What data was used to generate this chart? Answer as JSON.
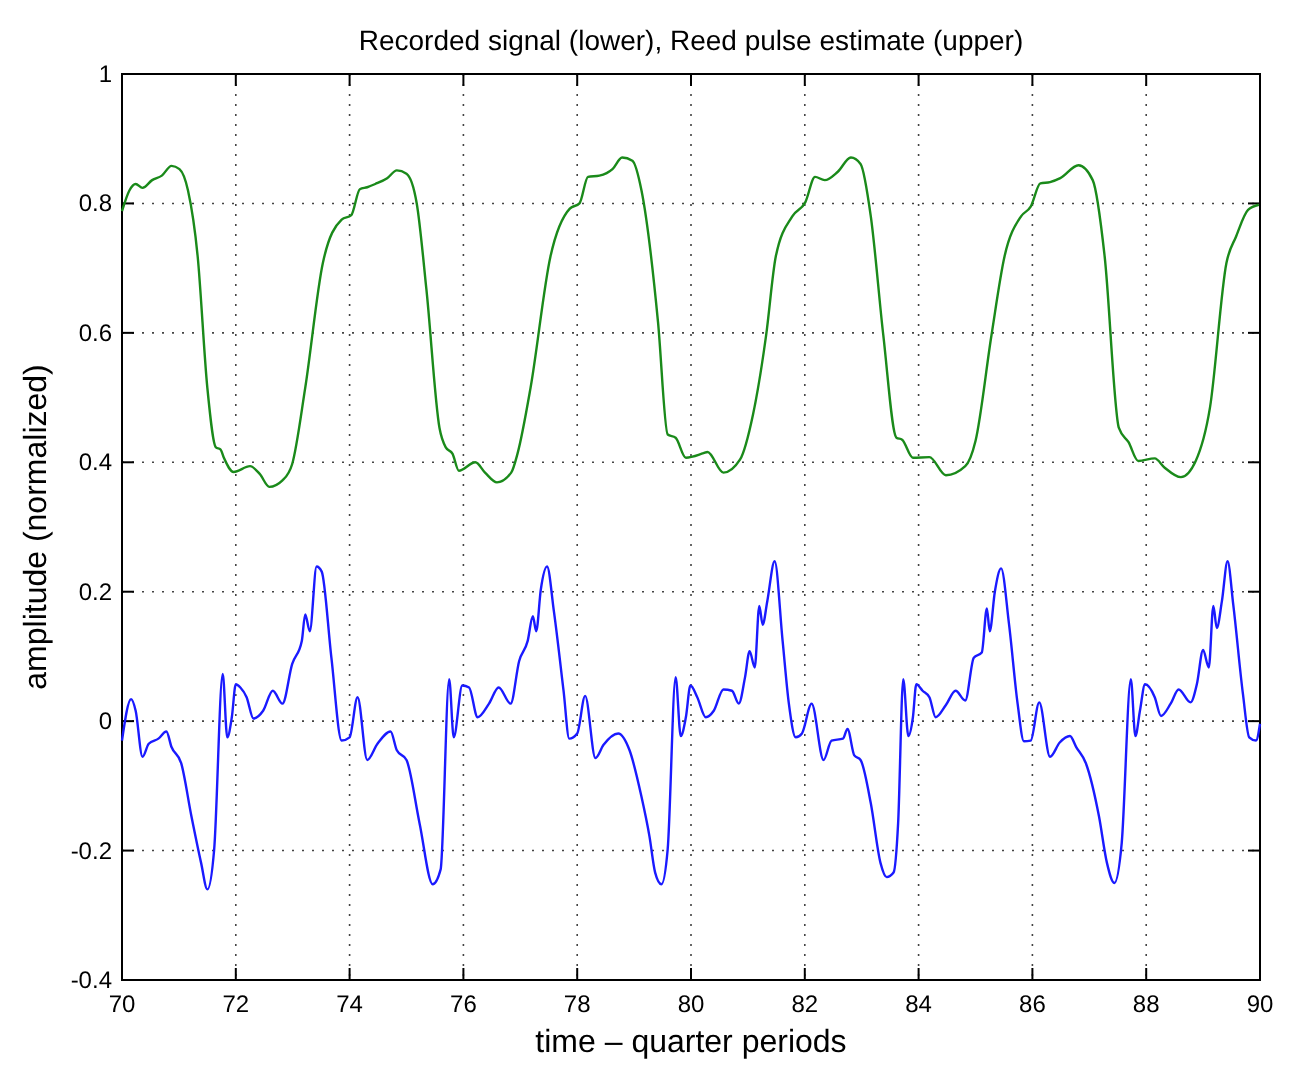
{
  "chart_data": {
    "type": "line",
    "title": "Recorded signal (lower), Reed pulse estimate (upper)",
    "xlabel": "time – quarter periods",
    "ylabel": "amplitude (normalized)",
    "xlim": [
      70,
      90
    ],
    "ylim": [
      -0.4,
      1
    ],
    "xticks": [
      70,
      72,
      74,
      76,
      78,
      80,
      82,
      84,
      86,
      88,
      90
    ],
    "yticks": [
      -0.4,
      -0.2,
      0,
      0.2,
      0.4,
      0.6,
      0.8,
      1
    ],
    "grid": true,
    "marker": "none",
    "line_style": "solid",
    "series": [
      {
        "color": "#1a8a1a",
        "x": [
          70,
          70.13,
          70.24,
          70.36,
          70.53,
          70.7,
          70.87,
          71.01,
          71.16,
          71.33,
          71.5,
          71.65,
          71.73,
          71.79,
          71.96,
          72.25,
          72.42,
          72.59,
          72.82,
          72.99,
          73.22,
          73.53,
          73.86,
          74.03,
          74.18,
          74.31,
          74.45,
          74.66,
          74.83,
          75.0,
          75.18,
          75.35,
          75.58,
          75.69,
          75.81,
          75.92,
          76.21,
          76.38,
          76.59,
          76.84,
          76.95,
          77.18,
          77.53,
          77.87,
          78.04,
          78.19,
          78.39,
          78.62,
          78.79,
          78.97,
          79.13,
          79.42,
          79.59,
          79.73,
          79.91,
          80.22,
          80.29,
          80.57,
          80.86,
          81.09,
          81.32,
          81.49,
          81.78,
          82.01,
          82.18,
          82.35,
          82.58,
          82.81,
          82.98,
          83.16,
          83.38,
          83.61,
          83.71,
          83.9,
          84.19,
          84.48,
          84.82,
          85.0,
          85.28,
          85.51,
          85.8,
          85.97,
          86.14,
          86.31,
          86.49,
          86.81,
          87.06,
          87.27,
          87.52,
          87.69,
          87.86,
          88.15,
          88.32,
          88.61,
          88.87,
          89.12,
          89.41,
          89.58,
          89.79,
          89.98
        ],
        "values": [
          0.788,
          0.82,
          0.83,
          0.824,
          0.836,
          0.843,
          0.858,
          0.853,
          0.82,
          0.718,
          0.515,
          0.423,
          0.42,
          0.407,
          0.385,
          0.394,
          0.382,
          0.362,
          0.372,
          0.397,
          0.515,
          0.708,
          0.775,
          0.782,
          0.822,
          0.825,
          0.83,
          0.839,
          0.851,
          0.846,
          0.8,
          0.667,
          0.453,
          0.423,
          0.413,
          0.387,
          0.4,
          0.384,
          0.369,
          0.384,
          0.413,
          0.515,
          0.718,
          0.792,
          0.8,
          0.841,
          0.843,
          0.853,
          0.871,
          0.866,
          0.82,
          0.617,
          0.443,
          0.438,
          0.407,
          0.414,
          0.416,
          0.384,
          0.404,
          0.474,
          0.596,
          0.718,
          0.78,
          0.802,
          0.841,
          0.836,
          0.849,
          0.871,
          0.861,
          0.78,
          0.596,
          0.438,
          0.435,
          0.407,
          0.408,
          0.38,
          0.394,
          0.433,
          0.596,
          0.718,
          0.78,
          0.795,
          0.831,
          0.833,
          0.839,
          0.859,
          0.836,
          0.718,
          0.453,
          0.431,
          0.402,
          0.406,
          0.392,
          0.377,
          0.402,
          0.484,
          0.708,
          0.749,
          0.79,
          0.798
        ]
      },
      {
        "color": "#1a1aff",
        "x": [
          70,
          70.16,
          70.24,
          70.36,
          70.47,
          70.64,
          70.78,
          70.87,
          71.04,
          71.22,
          71.39,
          71.5,
          71.62,
          71.77,
          71.85,
          71.93,
          72,
          72.08,
          72.19,
          72.31,
          72.48,
          72.65,
          72.82,
          72.99,
          73.16,
          73.22,
          73.3,
          73.42,
          73.51,
          73.68,
          73.86,
          74,
          74.14,
          74.31,
          74.49,
          74.72,
          74.83,
          75.0,
          75.23,
          75.46,
          75.6,
          75.75,
          75.83,
          75.98,
          76.1,
          76.25,
          76.45,
          76.62,
          76.83,
          76.98,
          77.13,
          77.22,
          77.28,
          77.36,
          77.47,
          77.59,
          77.76,
          77.86,
          78,
          78.14,
          78.32,
          78.46,
          78.72,
          78.92,
          79.13,
          79.27,
          79.37,
          79.48,
          79.59,
          79.73,
          79.82,
          79.91,
          79.99,
          80.11,
          80.26,
          80.4,
          80.57,
          80.72,
          80.84,
          80.95,
          81.03,
          81.12,
          81.2,
          81.26,
          81.34,
          81.47,
          81.61,
          81.72,
          81.84,
          81.95,
          82.12,
          82.33,
          82.47,
          82.67,
          82.75,
          82.87,
          82.98,
          83.16,
          83.33,
          83.44,
          83.56,
          83.64,
          83.73,
          83.82,
          83.9,
          83.96,
          84.07,
          84.19,
          84.3,
          84.48,
          84.65,
          84.82,
          84.97,
          85.11,
          85.2,
          85.25,
          85.34,
          85.45,
          85.59,
          85.74,
          85.85,
          85.97,
          86.12,
          86.31,
          86.48,
          86.66,
          86.77,
          86.94,
          87.17,
          87.31,
          87.44,
          87.57,
          87.73,
          87.81,
          87.89,
          87.98,
          88.15,
          88.26,
          88.43,
          88.57,
          88.78,
          88.89,
          89.0,
          89.1,
          89.18,
          89.24,
          89.33,
          89.43,
          89.53,
          89.7,
          89.81,
          89.93,
          90.0
        ],
        "values": [
          -0.03,
          0.034,
          0.016,
          -0.055,
          -0.035,
          -0.027,
          -0.016,
          -0.04,
          -0.065,
          -0.147,
          -0.219,
          -0.26,
          -0.198,
          0.073,
          -0.025,
          0.006,
          0.057,
          0.052,
          0.037,
          0.004,
          0.016,
          0.047,
          0.027,
          0.088,
          0.124,
          0.165,
          0.139,
          0.239,
          0.231,
          0.098,
          -0.03,
          -0.025,
          0.037,
          -0.06,
          -0.035,
          -0.016,
          -0.045,
          -0.06,
          -0.158,
          -0.252,
          -0.229,
          0.065,
          -0.025,
          0.055,
          0.052,
          0.006,
          0.027,
          0.052,
          0.027,
          0.093,
          0.124,
          0.162,
          0.139,
          0.203,
          0.239,
          0.17,
          0.047,
          -0.027,
          -0.019,
          0.039,
          -0.057,
          -0.037,
          -0.019,
          -0.045,
          -0.117,
          -0.178,
          -0.234,
          -0.252,
          -0.198,
          0.068,
          -0.023,
          0.006,
          0.055,
          0.037,
          0.006,
          0.016,
          0.049,
          0.047,
          0.027,
          0.068,
          0.108,
          0.083,
          0.178,
          0.149,
          0.185,
          0.247,
          0.124,
          0.027,
          -0.025,
          -0.019,
          0.027,
          -0.06,
          -0.03,
          -0.027,
          -0.012,
          -0.053,
          -0.06,
          -0.127,
          -0.219,
          -0.241,
          -0.234,
          -0.158,
          0.065,
          -0.023,
          0.006,
          0.057,
          0.047,
          0.037,
          0.006,
          0.025,
          0.047,
          0.032,
          0.098,
          0.106,
          0.174,
          0.139,
          0.2,
          0.236,
          0.149,
          0.027,
          -0.031,
          -0.03,
          0.029,
          -0.055,
          -0.033,
          -0.023,
          -0.04,
          -0.065,
          -0.147,
          -0.219,
          -0.25,
          -0.188,
          0.065,
          -0.023,
          0.016,
          0.057,
          0.037,
          0.008,
          0.027,
          0.049,
          0.029,
          0.057,
          0.11,
          0.083,
          0.178,
          0.144,
          0.185,
          0.247,
          0.18,
          0.042,
          -0.025,
          -0.03,
          -0.004
        ]
      }
    ]
  }
}
